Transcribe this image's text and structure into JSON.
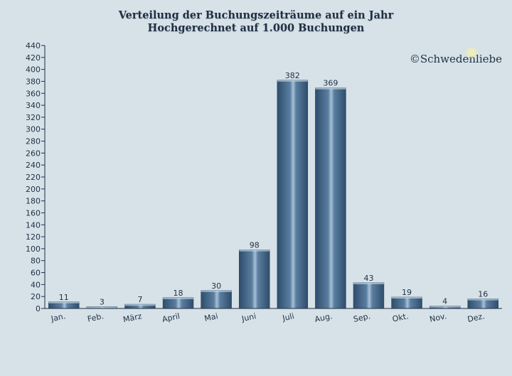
{
  "chart_data": {
    "type": "bar",
    "title": "Verteilung der Buchungszeiträume auf ein Jahr",
    "subtitle": "Hochgerechnet auf 1.000 Buchungen",
    "categories": [
      "Jan.",
      "Feb.",
      "März",
      "April",
      "Mai",
      "Juni",
      "Juli",
      "Aug.",
      "Sep.",
      "Okt.",
      "Nov.",
      "Dez."
    ],
    "values": [
      11,
      3,
      7,
      18,
      30,
      98,
      382,
      369,
      43,
      19,
      4,
      16
    ],
    "xlabel": "",
    "ylabel": "",
    "ylim": [
      0,
      440
    ],
    "yticks": [
      0,
      20,
      40,
      60,
      80,
      100,
      120,
      140,
      160,
      180,
      200,
      220,
      240,
      260,
      280,
      300,
      320,
      340,
      360,
      380,
      400,
      420,
      440
    ],
    "grid": false,
    "data_labels": true,
    "bar_color": "#3f6183",
    "bar_highlight": "#a8c0d6",
    "background": "#d6e2e8"
  },
  "watermark": {
    "copyright_symbol": "©",
    "text": "Schwedenliebe"
  }
}
